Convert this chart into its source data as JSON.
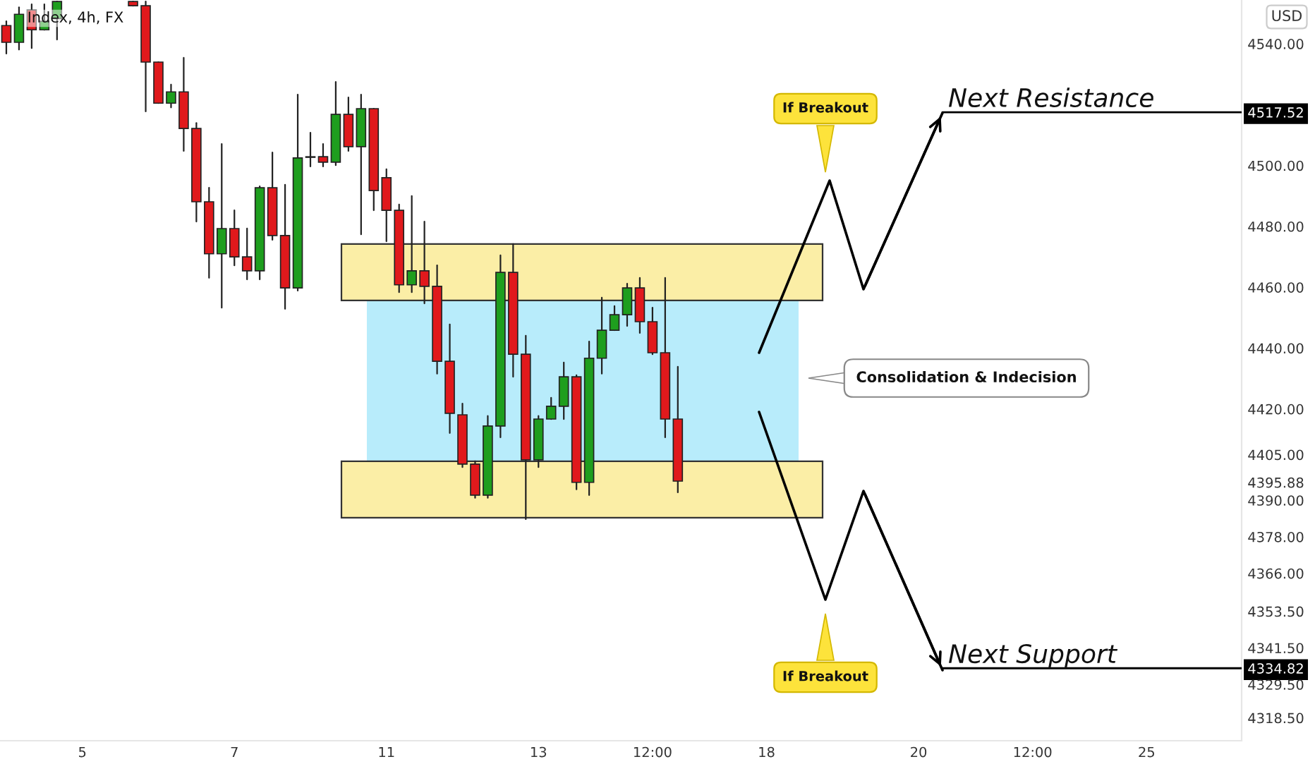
{
  "chart_data": {
    "type": "candlestick",
    "title": "Index, 4h, FX",
    "categories": [
      null,
      null,
      null,
      null,
      null,
      null,
      "5",
      null,
      null,
      null,
      null,
      null,
      null,
      null,
      null,
      null,
      null,
      null,
      "7",
      null,
      null,
      null,
      null,
      null,
      null,
      null,
      null,
      null,
      null,
      null,
      "11",
      null,
      null,
      null,
      null,
      null,
      null,
      null,
      null,
      null,
      null,
      null,
      "13",
      null,
      null,
      null,
      null,
      null,
      null,
      null,
      null,
      "12:00",
      null,
      null,
      null,
      null,
      null,
      null,
      null,
      null,
      "18",
      null,
      null,
      null,
      null,
      null,
      null,
      null,
      null,
      null,
      null,
      null,
      "20",
      null,
      null,
      null,
      null,
      null,
      null,
      null,
      null,
      "12:00",
      null,
      null,
      null,
      null,
      null,
      null,
      null,
      null,
      "25",
      null,
      null,
      null,
      null,
      null,
      null,
      null
    ],
    "ohlc": [
      [
        4546.0,
        4547.4,
        4536.8,
        4540.5
      ],
      [
        4540.5,
        4552.0,
        4538.1,
        4549.7
      ],
      [
        4551.1,
        4553.0,
        4538.6,
        4544.6
      ],
      [
        4544.6,
        4553.0,
        4544.6,
        4547.4
      ],
      [
        4548.3,
        4553.9,
        4541.4,
        4553.9
      ],
      null,
      null,
      null,
      null,
      null,
      [
        4553.9,
        4553.9,
        4552.5,
        4552.5
      ],
      [
        4552.5,
        4553.9,
        4517.8,
        4534.0
      ],
      [
        4534.0,
        4534.0,
        4520.5,
        4520.5
      ],
      [
        4520.5,
        4526.6,
        4519.1,
        4524.2
      ],
      [
        4524.2,
        4535.4,
        4504.8,
        4512.2
      ],
      [
        4512.2,
        4514.0,
        4481.6,
        4488.1
      ],
      [
        4488.1,
        4492.7,
        4463.1,
        4471.0
      ],
      [
        4471.0,
        4507.1,
        4453.3,
        4479.3
      ],
      [
        4479.3,
        4485.3,
        4467.2,
        4470.0
      ],
      [
        4470.0,
        4479.3,
        4462.6,
        4465.4
      ],
      [
        4465.4,
        4493.2,
        4462.6,
        4492.7
      ],
      [
        4492.7,
        4504.3,
        4475.6,
        4477.0
      ],
      [
        4477.0,
        4493.7,
        4452.9,
        4459.8
      ],
      [
        4459.8,
        4523.3,
        4458.9,
        4502.5
      ],
      [
        4502.9,
        4510.8,
        4499.7,
        4502.7
      ],
      [
        4502.9,
        4507.1,
        4499.7,
        4501.1
      ],
      [
        4501.1,
        4527.5,
        4500.1,
        4516.8
      ],
      [
        4516.8,
        4522.4,
        4504.8,
        4506.2
      ],
      [
        4506.2,
        4523.3,
        4477.4,
        4518.7
      ],
      [
        4518.7,
        4518.7,
        4485.3,
        4491.8
      ],
      [
        4496.0,
        4498.8,
        4475.1,
        4485.3
      ],
      [
        4485.3,
        4487.2,
        4458.4,
        4460.8
      ],
      [
        4460.8,
        4490.0,
        4458.4,
        4465.4
      ],
      [
        4465.4,
        4481.6,
        4454.7,
        4460.3
      ],
      [
        4460.3,
        4467.2,
        4431.6,
        4435.7
      ],
      [
        4435.7,
        4447.8,
        4412.1,
        4418.6
      ],
      [
        4418.1,
        4421.8,
        4400.9,
        4401.9
      ],
      [
        4401.9,
        4402.8,
        4390.8,
        4391.7
      ],
      [
        4391.7,
        4417.7,
        4390.8,
        4414.4
      ],
      [
        4414.4,
        4470.5,
        4410.7,
        4464.9
      ],
      [
        4464.9,
        4474.2,
        4430.6,
        4438.0
      ],
      [
        4438.0,
        4444.1,
        4383.8,
        4403.3
      ],
      [
        4403.3,
        4417.7,
        4400.9,
        4416.7
      ],
      [
        4416.7,
        4423.7,
        4416.7,
        4420.9
      ],
      [
        4420.9,
        4435.3,
        4416.7,
        4430.6
      ],
      [
        4430.6,
        4431.1,
        4393.6,
        4395.9
      ],
      [
        4395.9,
        4442.2,
        4391.7,
        4436.7
      ],
      [
        4436.7,
        4456.6,
        4431.6,
        4445.9
      ],
      [
        4445.9,
        4453.8,
        4445.9,
        4451.0
      ],
      [
        4451.0,
        4461.2,
        4447.3,
        4459.8
      ],
      [
        4459.8,
        4463.1,
        4445.0,
        4448.7
      ],
      [
        4448.7,
        4453.3,
        4438.0,
        4438.5
      ],
      [
        4438.5,
        4463.1,
        4410.7,
        4416.7
      ],
      [
        4416.7,
        4433.9,
        4392.6,
        4396.3
      ],
      null,
      null,
      null,
      null,
      null,
      null,
      null,
      null,
      null,
      null,
      null,
      null,
      null,
      null,
      null,
      null,
      null,
      null,
      null,
      null,
      null,
      null,
      null,
      null,
      null,
      null,
      null,
      null,
      null,
      null,
      null,
      null,
      null,
      null,
      null,
      null,
      null,
      null,
      null,
      null,
      null,
      null,
      null,
      null
    ],
    "ylim": [
      4311,
      4554.4
    ],
    "yticks": [
      {
        "value": 4540,
        "label": "4540.00"
      },
      {
        "value": 4517.52,
        "label": "4517.52"
      },
      {
        "value": 4500,
        "label": "4500.00"
      },
      {
        "value": 4480,
        "label": "4480.00"
      },
      {
        "value": 4460,
        "label": "4460.00"
      },
      {
        "value": 4440,
        "label": "4440.00"
      },
      {
        "value": 4420,
        "label": "4420.00"
      },
      {
        "value": 4405,
        "label": "4405.00"
      },
      {
        "value": 4395.88,
        "label": "4395.88"
      },
      {
        "value": 4390,
        "label": "4390.00"
      },
      {
        "value": 4378,
        "label": "4378.00"
      },
      {
        "value": 4366,
        "label": "4366.00"
      },
      {
        "value": 4353.5,
        "label": "4353.50"
      },
      {
        "value": 4341.5,
        "label": "4341.50"
      },
      {
        "value": 4334.82,
        "label": "4334.82"
      },
      {
        "value": 4329.5,
        "label": "4329.50"
      },
      {
        "value": 4318.5,
        "label": "4318.50"
      }
    ],
    "bands": [
      {
        "axis": "y",
        "from": 4455.7,
        "to": 4474.2,
        "color": "#fbeea6"
      },
      {
        "axis": "y",
        "from": 4402.8,
        "to": 4455.7,
        "color": "#b8ecfb"
      },
      {
        "axis": "y",
        "from": 4384.3,
        "to": 4402.8,
        "color": "#fbeea6"
      }
    ],
    "ref_lines": [
      {
        "axis": "y",
        "value": 4517.52,
        "label": "Next Resistance",
        "color": "#000000"
      },
      {
        "axis": "y",
        "value": 4334.82,
        "label": "Next Support",
        "color": "#000000"
      }
    ],
    "annotations": [
      "USD",
      "If Breakout",
      "Consolidation & Indecision",
      "If Breakout"
    ],
    "grid": false,
    "legend": false
  }
}
